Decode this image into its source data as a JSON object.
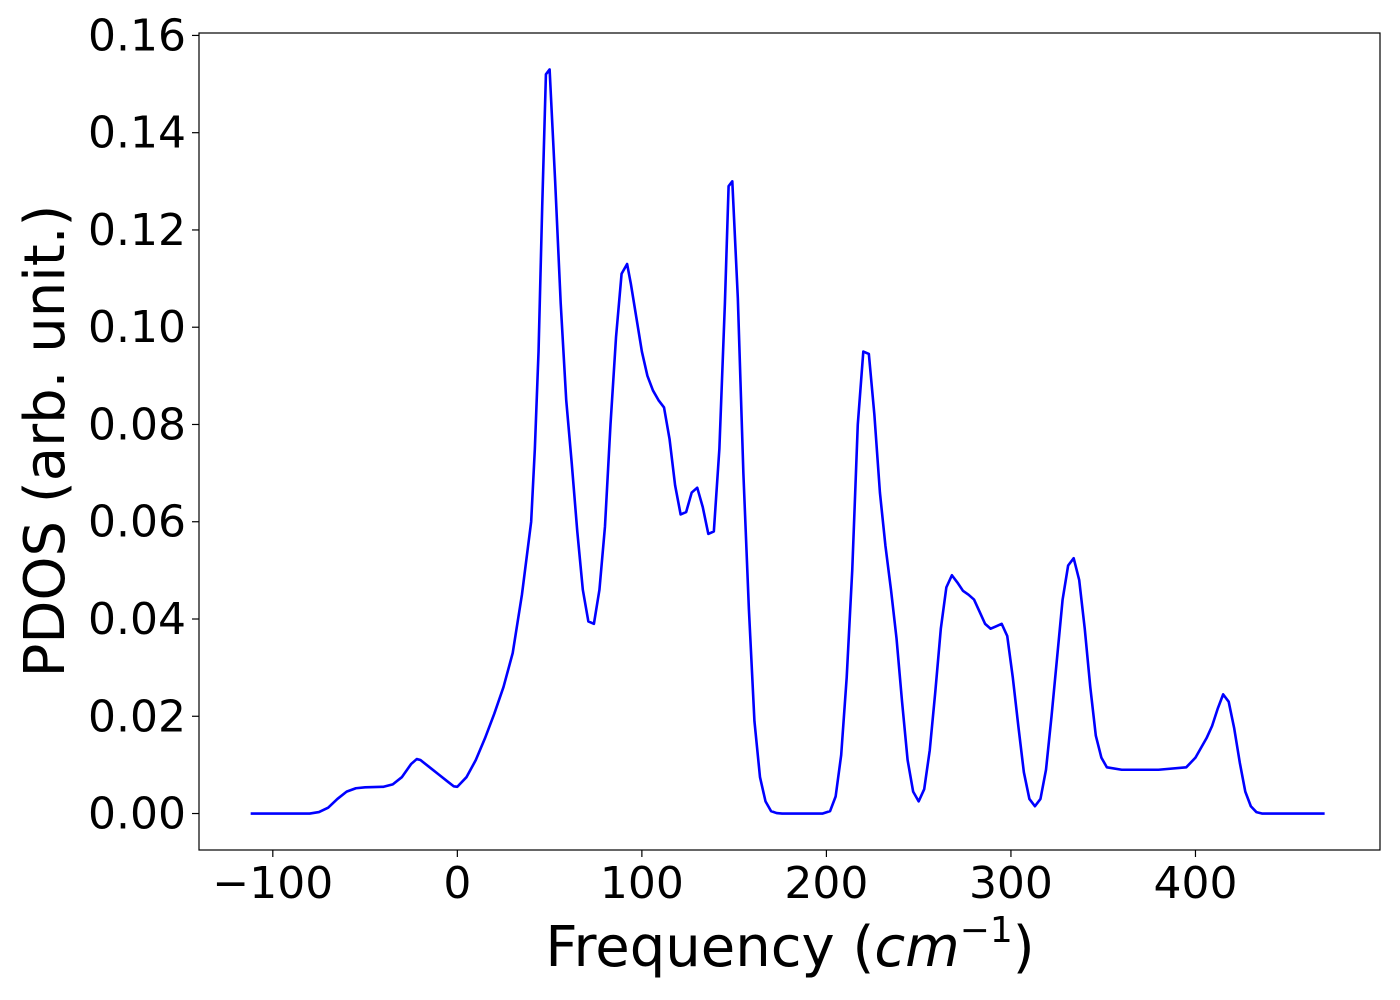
{
  "chart_data": {
    "type": "line",
    "title": "",
    "xlabel_prefix": "Frequency (",
    "xlabel_var": "cm",
    "xlabel_exp": "−1",
    "xlabel_suffix": ")",
    "ylabel": "PDOS (arb. unit.)",
    "xlim": [
      -140,
      500
    ],
    "ylim": [
      -0.0075,
      0.1605
    ],
    "xticks": [
      -100,
      0,
      100,
      200,
      300,
      400
    ],
    "xtick_labels": [
      "−100",
      "0",
      "100",
      "200",
      "300",
      "400"
    ],
    "yticks": [
      0.0,
      0.02,
      0.04,
      0.06,
      0.08,
      0.1,
      0.12,
      0.14,
      0.16
    ],
    "ytick_labels": [
      "0.00",
      "0.02",
      "0.04",
      "0.06",
      "0.08",
      "0.10",
      "0.12",
      "0.14",
      "0.16"
    ],
    "grid": false,
    "series": [
      {
        "color": "#0000ff",
        "x": [
          -112,
          -80,
          -75,
          -70,
          -65,
          -60,
          -55,
          -50,
          -40,
          -35,
          -30,
          -25,
          -22,
          -20,
          -15,
          -10,
          -5,
          -2,
          0,
          5,
          10,
          15,
          20,
          25,
          30,
          35,
          40,
          42,
          44,
          46,
          48,
          50,
          53,
          56,
          59,
          62,
          65,
          68,
          71,
          74,
          77,
          80,
          83,
          86,
          89,
          92,
          94,
          97,
          100,
          103,
          106,
          109,
          112,
          115,
          118,
          121,
          124,
          127,
          130,
          133,
          136,
          139,
          142,
          145,
          147,
          149,
          152,
          155,
          158,
          161,
          164,
          167,
          170,
          173,
          176,
          180,
          190,
          198,
          202,
          205,
          208,
          211,
          214,
          217,
          220,
          223,
          226,
          229,
          232,
          235,
          238,
          241,
          244,
          247,
          250,
          253,
          256,
          259,
          262,
          265,
          268,
          271,
          274,
          277,
          280,
          283,
          286,
          289,
          292,
          295,
          298,
          301,
          304,
          307,
          310,
          313,
          316,
          319,
          322,
          325,
          328,
          331,
          334,
          337,
          340,
          343,
          346,
          349,
          352,
          360,
          380,
          395,
          400,
          403,
          406,
          409,
          412,
          415,
          418,
          421,
          424,
          427,
          430,
          433,
          436,
          440,
          470
        ],
        "y": [
          0.0,
          0.0,
          0.0003,
          0.0012,
          0.003,
          0.0045,
          0.0052,
          0.0054,
          0.0055,
          0.006,
          0.0075,
          0.0102,
          0.0112,
          0.011,
          0.0095,
          0.008,
          0.0065,
          0.0056,
          0.0055,
          0.0075,
          0.011,
          0.0155,
          0.0205,
          0.026,
          0.033,
          0.045,
          0.06,
          0.075,
          0.095,
          0.125,
          0.152,
          0.153,
          0.13,
          0.105,
          0.085,
          0.072,
          0.058,
          0.046,
          0.0395,
          0.039,
          0.046,
          0.059,
          0.08,
          0.098,
          0.111,
          0.113,
          0.109,
          0.102,
          0.095,
          0.09,
          0.087,
          0.085,
          0.0835,
          0.077,
          0.0675,
          0.0615,
          0.062,
          0.066,
          0.067,
          0.063,
          0.0575,
          0.058,
          0.075,
          0.105,
          0.129,
          0.13,
          0.106,
          0.07,
          0.042,
          0.019,
          0.0075,
          0.0025,
          0.0005,
          0.0001,
          0.0,
          0.0,
          0.0,
          0.0,
          0.0005,
          0.0035,
          0.012,
          0.028,
          0.05,
          0.08,
          0.095,
          0.0945,
          0.082,
          0.066,
          0.055,
          0.046,
          0.036,
          0.023,
          0.011,
          0.0045,
          0.0025,
          0.005,
          0.013,
          0.025,
          0.038,
          0.0465,
          0.049,
          0.0475,
          0.0458,
          0.045,
          0.044,
          0.0415,
          0.039,
          0.038,
          0.0385,
          0.039,
          0.0365,
          0.028,
          0.018,
          0.0085,
          0.003,
          0.0015,
          0.003,
          0.009,
          0.02,
          0.032,
          0.044,
          0.051,
          0.0525,
          0.048,
          0.038,
          0.026,
          0.016,
          0.0115,
          0.0095,
          0.009,
          0.009,
          0.0095,
          0.0115,
          0.0135,
          0.0155,
          0.018,
          0.0215,
          0.0245,
          0.023,
          0.0175,
          0.0105,
          0.0045,
          0.0015,
          0.0003,
          0.0,
          0.0,
          0.0
        ]
      }
    ]
  }
}
